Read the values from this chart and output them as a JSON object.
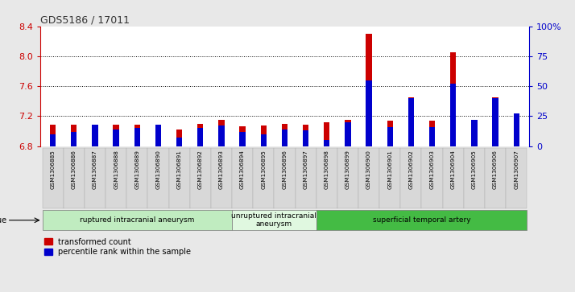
{
  "title": "GDS5186 / 17011",
  "samples": [
    "GSM1306885",
    "GSM1306886",
    "GSM1306887",
    "GSM1306888",
    "GSM1306889",
    "GSM1306890",
    "GSM1306891",
    "GSM1306892",
    "GSM1306893",
    "GSM1306894",
    "GSM1306895",
    "GSM1306896",
    "GSM1306897",
    "GSM1306898",
    "GSM1306899",
    "GSM1306900",
    "GSM1306901",
    "GSM1306902",
    "GSM1306903",
    "GSM1306904",
    "GSM1306905",
    "GSM1306906",
    "GSM1306907"
  ],
  "transformed_count": [
    7.08,
    7.08,
    7.08,
    7.08,
    7.08,
    7.05,
    7.02,
    7.1,
    7.15,
    7.06,
    7.07,
    7.1,
    7.08,
    7.12,
    7.15,
    8.3,
    7.14,
    7.45,
    7.14,
    8.05,
    7.14,
    7.45,
    7.2
  ],
  "percentile_rank": [
    10,
    12,
    18,
    14,
    15,
    18,
    7,
    15,
    17,
    12,
    10,
    14,
    13,
    5,
    20,
    55,
    16,
    40,
    16,
    52,
    22,
    40,
    27
  ],
  "groups": [
    {
      "label": "ruptured intracranial aneurysm",
      "start": 0,
      "end": 9,
      "color": "#c0ecc0"
    },
    {
      "label": "unruptured intracranial\naneurysm",
      "start": 9,
      "end": 13,
      "color": "#e0f8e0"
    },
    {
      "label": "superficial temporal artery",
      "start": 13,
      "end": 23,
      "color": "#44bb44"
    }
  ],
  "ylim_left": [
    6.8,
    8.4
  ],
  "ylim_right": [
    0,
    100
  ],
  "yticks_left": [
    6.8,
    7.2,
    7.6,
    8.0,
    8.4
  ],
  "yticks_right": [
    0,
    25,
    50,
    75,
    100
  ],
  "bar_color": "#cc0000",
  "percentile_color": "#0000cc",
  "bg_color": "#e8e8e8",
  "plot_bg": "#ffffff",
  "axis_color_left": "#cc0000",
  "axis_color_right": "#0000cc",
  "tick_bg": "#d8d8d8"
}
